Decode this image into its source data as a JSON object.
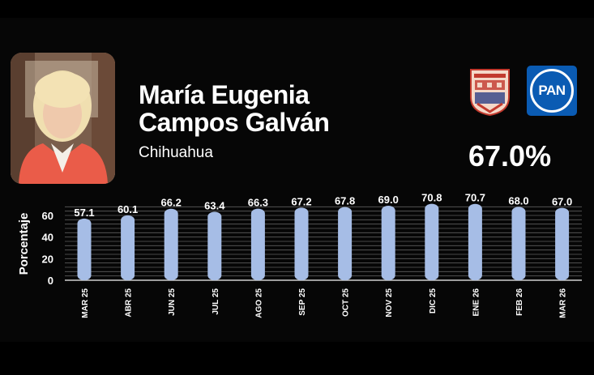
{
  "candidate": {
    "name_line1": "María Eugenia",
    "name_line2": "Campos Galván",
    "state": "Chihuahua",
    "approval": "67.0%",
    "party_logo_text": "PAN",
    "party_color": "#0a5bb3"
  },
  "chart_data": {
    "type": "bar",
    "ylabel": "Porcentaje",
    "ylim": [
      0,
      70
    ],
    "yticks": [
      "0",
      "20",
      "40",
      "60"
    ],
    "categories": [
      "MAR 25",
      "ABR 25",
      "JUN 25",
      "JUL 25",
      "AGO 25",
      "SEP 25",
      "OCT 25",
      "NOV 25",
      "DIC 25",
      "ENE 26",
      "FEB 26",
      "MAR 26"
    ],
    "values": [
      57.1,
      60.1,
      66.2,
      63.4,
      66.3,
      67.2,
      67.8,
      69.0,
      70.8,
      70.7,
      68.0,
      67.0
    ],
    "value_labels": [
      "57.1",
      "60.1",
      "66.2",
      "63.4",
      "66.3",
      "67.2",
      "67.8",
      "69.0",
      "70.8",
      "70.7",
      "68.0",
      "67.0"
    ],
    "bar_color": "#a6bde6",
    "grid": true
  }
}
